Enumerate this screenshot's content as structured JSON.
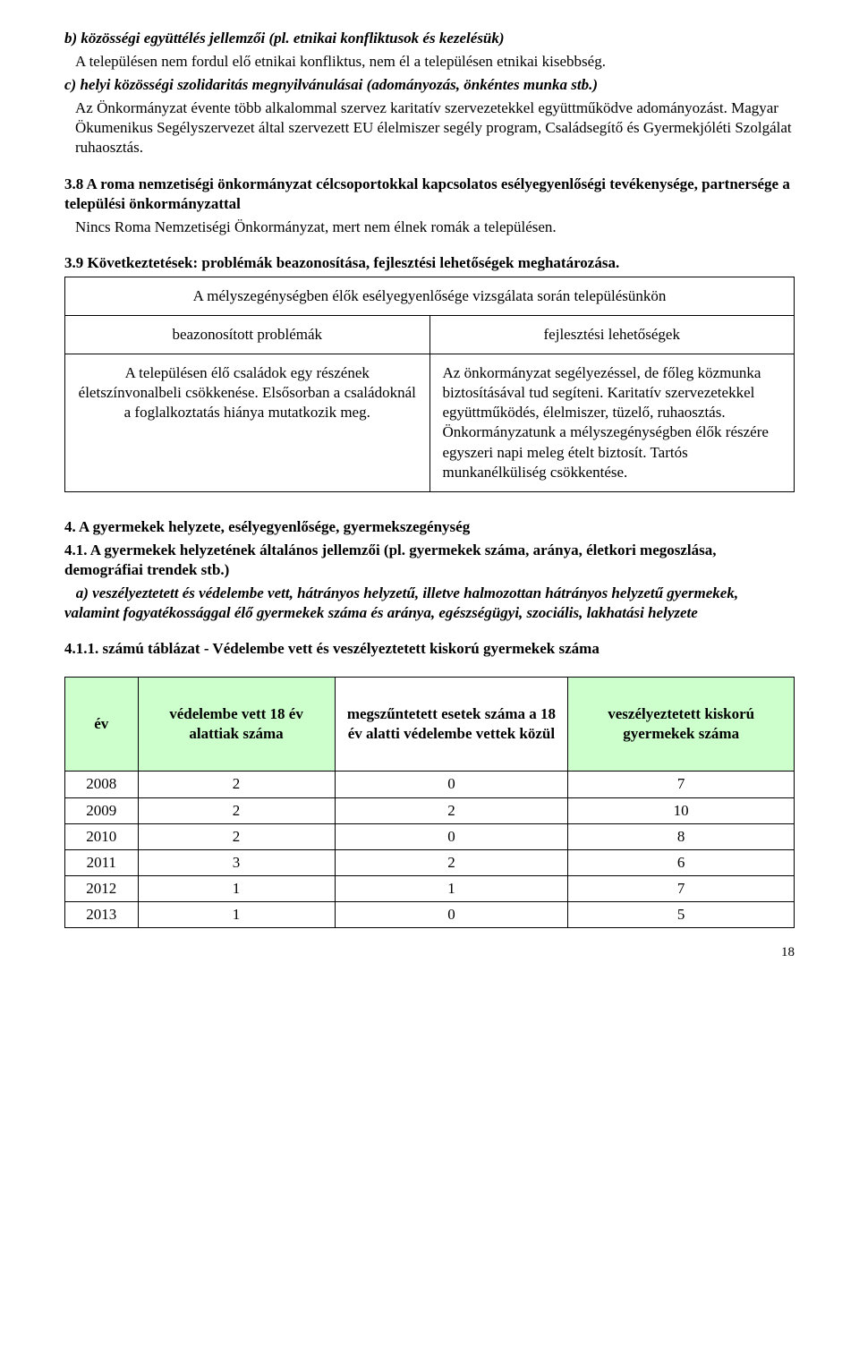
{
  "section_b": {
    "heading": "b) közösségi együttélés jellemzői (pl. etnikai konfliktusok és kezelésük)",
    "body": "A településen nem fordul elő etnikai konfliktus, nem él a településen etnikai kisebbség."
  },
  "section_c": {
    "heading": "c) helyi közösségi szolidaritás megnyilvánulásai (adományozás, önkéntes munka stb.)",
    "body": "Az Önkormányzat évente több alkalommal szervez karitatív szervezetekkel együttműködve adományozást. Magyar Ökumenikus Segélyszervezet által szervezett EU élelmiszer segély program, Családsegítő és Gyermekjóléti Szolgálat ruhaosztás."
  },
  "section_38": {
    "heading": "3.8 A roma nemzetiségi önkormányzat célcsoportokkal kapcsolatos esélyegyenlőségi tevékenysége, partnersége a települési önkormányzattal",
    "body": "Nincs Roma Nemzetiségi Önkormányzat, mert nem élnek romák a településen."
  },
  "section_39": {
    "heading": "3.9 Következtetések: problémák beazonosítása, fejlesztési lehetőségek meghatározása.",
    "table": {
      "title_row": "A mélyszegénységben élők  esélyegyenlősége vizsgálata során településünkön",
      "col1_header": "beazonosított problémák",
      "col2_header": "fejlesztési lehetőségek",
      "col1_body": "A településen élő családok egy részének életszínvonalbeli csökkenése. Elsősorban a családoknál a foglalkoztatás hiánya mutatkozik meg.",
      "col2_body": "Az önkormányzat segélyezéssel, de főleg közmunka biztosításával tud segíteni. Karitatív szervezetekkel együttműködés, élelmiszer, tüzelő, ruhaosztás. Önkormányzatunk a mélyszegénységben élők részére egyszeri napi meleg ételt biztosít. Tartós munkanélküliség csökkentése."
    }
  },
  "section_4": {
    "heading": "4. A gyermekek helyzete, esélyegyenlősége, gyermekszegénység",
    "sub_41": "4.1. A gyermekek helyzetének általános jellemzői (pl. gyermekek száma, aránya, életkori megoszlása, demográfiai trendek stb.)",
    "sub_a": "   a) veszélyeztetett és védelembe vett, hátrányos helyzetű, illetve halmozottan hátrányos helyzetű gyermekek, valamint fogyatékossággal élő gyermekek száma és aránya, egészségügyi, szociális, lakhatási helyzete",
    "table_title": "4.1.1. számú táblázat - Védelembe vett és veszélyeztetett kiskorú gyermekek száma",
    "table": {
      "columns": [
        "év",
        "védelembe vett 18 év alattiak száma",
        "megszűntetett esetek száma a 18 év alatti védelembe vettek közül",
        "veszélyeztetett kiskorú gyermekek száma"
      ],
      "col_widths_pct": [
        10,
        27,
        32,
        31
      ],
      "header_bg": [
        "#ccffcc",
        "#ccffcc",
        "#ffffff",
        "#ccffcc"
      ],
      "rows": [
        [
          "2008",
          "2",
          "0",
          "7"
        ],
        [
          "2009",
          "2",
          "2",
          "10"
        ],
        [
          "2010",
          "2",
          "0",
          "8"
        ],
        [
          "2011",
          "3",
          "2",
          "6"
        ],
        [
          "2012",
          "1",
          "1",
          "7"
        ],
        [
          "2013",
          "1",
          "0",
          "5"
        ]
      ]
    }
  },
  "page_number": "18"
}
